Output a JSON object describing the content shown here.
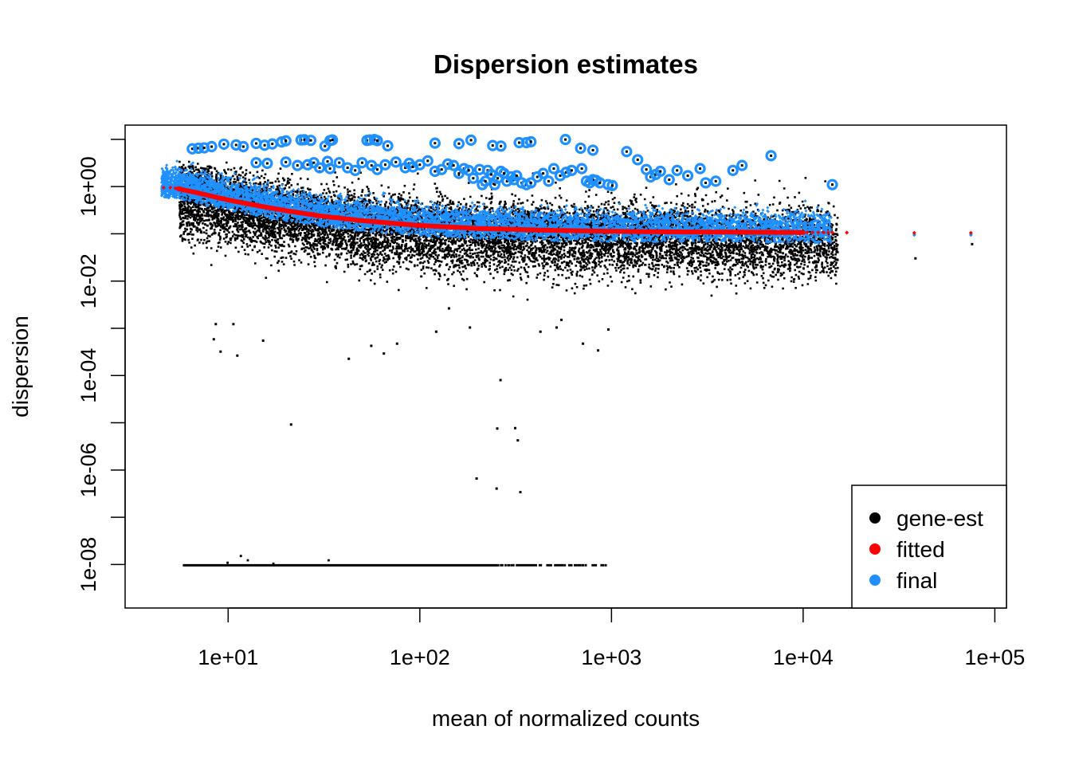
{
  "chart_data": {
    "type": "scatter",
    "title": "Dispersion estimates",
    "xlabel": "mean of normalized counts",
    "ylabel": "dispersion",
    "x_scale": "log10",
    "y_scale": "log10",
    "xlim": [
      2.9,
      115000
    ],
    "ylim": [
      1.2e-09,
      20
    ],
    "x_ticks": [
      {
        "value": 10,
        "label": "1e+01"
      },
      {
        "value": 100,
        "label": "1e+02"
      },
      {
        "value": 1000,
        "label": "1e+03"
      },
      {
        "value": 10000,
        "label": "1e+04"
      },
      {
        "value": 100000,
        "label": "1e+05"
      }
    ],
    "y_ticks": [
      {
        "value": 1e-08,
        "label": "1e-08",
        "labeled": true
      },
      {
        "value": 1e-07,
        "label": "",
        "labeled": false
      },
      {
        "value": 1e-06,
        "label": "1e-06",
        "labeled": true
      },
      {
        "value": 1e-05,
        "label": "",
        "labeled": false
      },
      {
        "value": 0.0001,
        "label": "1e-04",
        "labeled": true
      },
      {
        "value": 0.001,
        "label": "",
        "labeled": false
      },
      {
        "value": 0.01,
        "label": "1e-02",
        "labeled": true
      },
      {
        "value": 0.1,
        "label": "",
        "labeled": false
      },
      {
        "value": 1,
        "label": "1e+00",
        "labeled": true
      },
      {
        "value": 10,
        "label": "",
        "labeled": false
      }
    ],
    "grid": false,
    "legend": {
      "position": "bottom-right",
      "entries": [
        {
          "label": "gene-est",
          "color": "#000000"
        },
        {
          "label": "fitted",
          "color": "#ff0000"
        },
        {
          "label": "final",
          "color": "#1e90ff"
        }
      ]
    },
    "series": [
      {
        "name": "gene-est",
        "color": "#000000",
        "cloud": {
          "x_min": 5.5,
          "x_max": 15000,
          "center_dispersion_at_x10": 0.1,
          "center_dispersion_at_x1000": 0.07
        },
        "zero_line": {
          "y": 1e-08,
          "x_range": [
            5.8,
            950
          ]
        },
        "outliers": [
          [
            8.5,
            0.0013
          ],
          [
            10.5,
            0.0013
          ],
          [
            9,
            0.00034
          ],
          [
            8.3,
            0.00062
          ],
          [
            11,
            0.00028
          ],
          [
            21,
            9.7e-06
          ],
          [
            15,
            0.00058
          ],
          [
            42,
            0.00024
          ],
          [
            55,
            0.00045
          ],
          [
            64,
            0.00031
          ],
          [
            75,
            0.0005
          ],
          [
            260,
            8.5e-05
          ],
          [
            250,
            8e-06
          ],
          [
            310,
            8.2e-06
          ],
          [
            320,
            4.5e-06
          ],
          [
            195,
            7e-07
          ],
          [
            248,
            4.3e-07
          ],
          [
            330,
            3.6e-07
          ],
          [
            140,
            0.0028
          ],
          [
            120,
            0.0009
          ],
          [
            180,
            0.0011
          ],
          [
            420,
            0.0009
          ],
          [
            510,
            0.0011
          ],
          [
            840,
            0.00036
          ],
          [
            700,
            0.0005
          ],
          [
            950,
            0.001
          ],
          [
            540,
            0.0016
          ],
          [
            14000,
            0.017
          ],
          [
            38000,
            0.032
          ],
          [
            75000,
            0.064
          ]
        ],
        "zero_line_outliers": [
          [
            11.5,
            1.6e-08
          ],
          [
            12.5,
            1.3e-08
          ],
          [
            17,
            1.1e-08
          ],
          [
            33,
            1.3e-08
          ],
          [
            9.8,
            1.15e-08
          ]
        ]
      },
      {
        "name": "fitted",
        "color": "#ff0000",
        "points": [
          [
            5,
            0.95
          ],
          [
            5.5,
            0.9
          ],
          [
            7,
            0.73
          ],
          [
            10,
            0.52
          ],
          [
            15,
            0.38
          ],
          [
            20,
            0.31
          ],
          [
            30,
            0.24
          ],
          [
            50,
            0.19
          ],
          [
            100,
            0.15
          ],
          [
            200,
            0.13
          ],
          [
            500,
            0.118
          ],
          [
            1000,
            0.113
          ],
          [
            2000,
            0.11
          ],
          [
            5000,
            0.108
          ],
          [
            10000,
            0.107
          ],
          [
            14000,
            0.106
          ],
          [
            17000,
            0.106
          ],
          [
            38000,
            0.105
          ],
          [
            75000,
            0.105
          ]
        ]
      },
      {
        "name": "final",
        "color": "#1e90ff",
        "outliers_circled": [
          [
            6.5,
            6.3
          ],
          [
            7,
            6.5
          ],
          [
            7.5,
            6.6
          ],
          [
            8.2,
            7
          ],
          [
            9.5,
            7.9
          ],
          [
            11,
            7.6
          ],
          [
            12,
            7
          ],
          [
            14,
            8.2
          ],
          [
            15.5,
            7.5
          ],
          [
            17,
            8
          ],
          [
            19,
            8.8
          ],
          [
            20,
            9.3
          ],
          [
            24,
            9.7
          ],
          [
            25,
            9.8
          ],
          [
            27,
            9.5
          ],
          [
            32,
            7.2
          ],
          [
            34,
            9.4
          ],
          [
            35,
            9.7
          ],
          [
            53,
            9.5
          ],
          [
            55,
            9.7
          ],
          [
            58,
            9.9
          ],
          [
            60,
            9.4
          ],
          [
            68,
            7.3
          ],
          [
            120,
            8.3
          ],
          [
            160,
            8.1
          ],
          [
            185,
            9.6
          ],
          [
            240,
            7.4
          ],
          [
            265,
            7.2
          ],
          [
            330,
            8.5
          ],
          [
            360,
            8.5
          ],
          [
            380,
            8.9
          ],
          [
            575,
            9.9
          ],
          [
            690,
            6.5
          ],
          [
            800,
            5.9
          ],
          [
            14,
            3.2
          ],
          [
            16,
            3.1
          ],
          [
            20,
            3.3
          ],
          [
            23,
            2.8
          ],
          [
            26,
            2.9
          ],
          [
            28,
            3.2
          ],
          [
            30,
            2.5
          ],
          [
            33,
            3.4
          ],
          [
            34,
            2.4
          ],
          [
            38,
            3.2
          ],
          [
            42,
            2.5
          ],
          [
            46,
            2.2
          ],
          [
            50,
            3.2
          ],
          [
            56,
            2.8
          ],
          [
            60,
            2.3
          ],
          [
            66,
            2.9
          ],
          [
            75,
            3.3
          ],
          [
            84,
            2.5
          ],
          [
            88,
            3.1
          ],
          [
            92,
            2.6
          ],
          [
            100,
            2.9
          ],
          [
            110,
            3.5
          ],
          [
            120,
            2.1
          ],
          [
            130,
            2.3
          ],
          [
            140,
            3
          ],
          [
            150,
            2.8
          ],
          [
            160,
            1.9
          ],
          [
            170,
            2.4
          ],
          [
            180,
            2.2
          ],
          [
            190,
            1.5
          ],
          [
            205,
            2.3
          ],
          [
            212,
            1.1
          ],
          [
            220,
            1.3
          ],
          [
            226,
            2.2
          ],
          [
            236,
            1.8
          ],
          [
            246,
            1.1
          ],
          [
            255,
            1.5
          ],
          [
            265,
            2.1
          ],
          [
            275,
            1.9
          ],
          [
            285,
            1.3
          ],
          [
            300,
            1.6
          ],
          [
            310,
            1.4
          ],
          [
            320,
            1.7
          ],
          [
            340,
            1.2
          ],
          [
            360,
            1.1
          ],
          [
            380,
            1.2
          ],
          [
            410,
            1.6
          ],
          [
            440,
            1.9
          ],
          [
            470,
            1.3
          ],
          [
            500,
            2.4
          ],
          [
            540,
            1.7
          ],
          [
            580,
            2
          ],
          [
            620,
            2.2
          ],
          [
            700,
            2.4
          ],
          [
            740,
            1.3
          ],
          [
            770,
            1.2
          ],
          [
            800,
            1.4
          ],
          [
            830,
            1.35
          ],
          [
            870,
            1.2
          ],
          [
            960,
            1.1
          ],
          [
            1010,
            1.05
          ],
          [
            1200,
            5.5
          ],
          [
            1370,
            3.7
          ],
          [
            1520,
            2.3
          ],
          [
            1600,
            1.6
          ],
          [
            1700,
            1.8
          ],
          [
            1800,
            2.1
          ],
          [
            2000,
            1.4
          ],
          [
            2200,
            2.2
          ],
          [
            2500,
            1.7
          ],
          [
            2900,
            2.4
          ],
          [
            3100,
            1.2
          ],
          [
            3500,
            1.3
          ],
          [
            4300,
            2.2
          ],
          [
            4800,
            2.8
          ],
          [
            6800,
            4.5
          ],
          [
            14200,
            1.1
          ]
        ],
        "cloud": {
          "x_min": 4.5,
          "x_max": 14000,
          "center_dispersion_at_x10": 0.55,
          "center_dispersion_at_x1000": 0.12
        },
        "tail_points": [
          [
            38000,
            0.095
          ],
          [
            75000,
            0.095
          ]
        ]
      }
    ]
  }
}
